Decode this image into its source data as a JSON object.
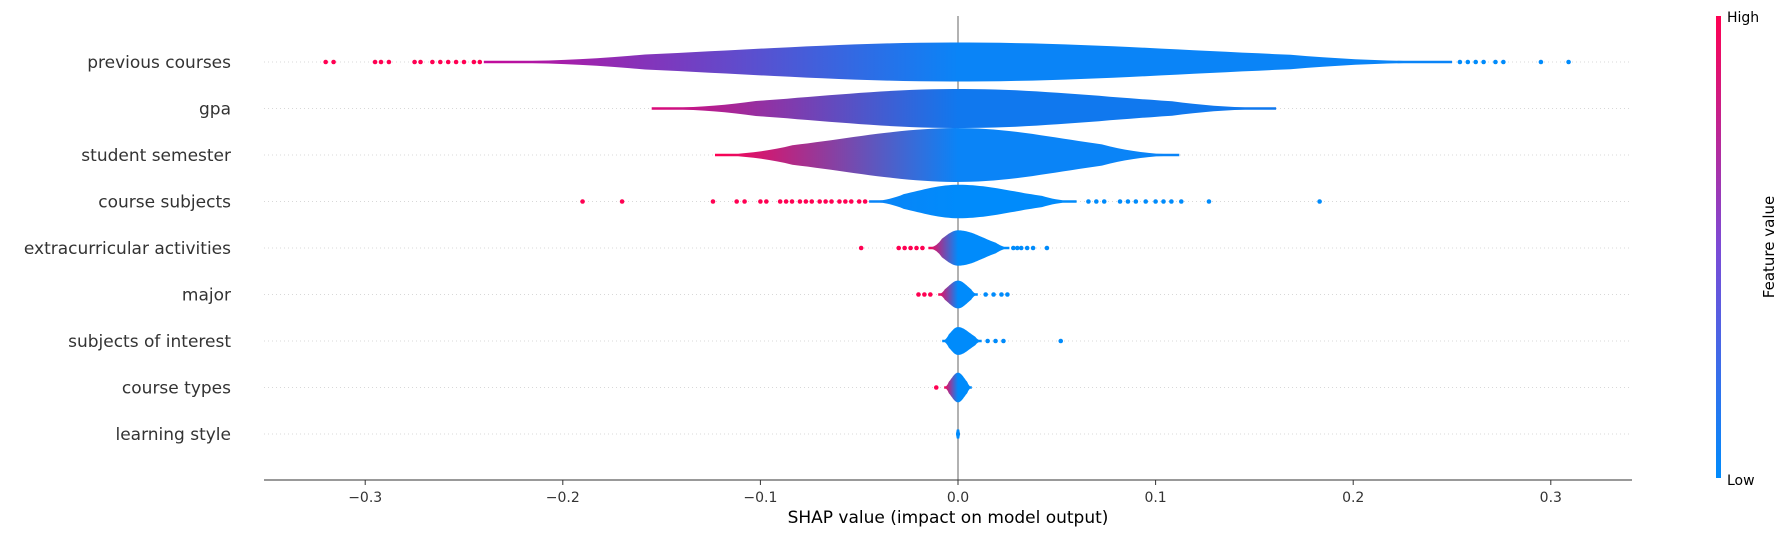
{
  "chart_data": {
    "type": "violin",
    "xlabel": "SHAP value (impact on model output)",
    "xlim": [
      -0.35,
      0.34
    ],
    "x_ticks": [
      -0.3,
      -0.2,
      -0.1,
      0.0,
      0.1,
      0.2,
      0.3
    ],
    "x_tick_labels": [
      "−0.3",
      "−0.2",
      "−0.1",
      "0.0",
      "0.1",
      "0.2",
      "0.3"
    ],
    "colorbar": {
      "label": "Feature value",
      "high_label": "High",
      "low_label": "Low",
      "high_color": "#ff0052",
      "low_color": "#008bfb"
    },
    "features": [
      {
        "name": "previous courses",
        "min": -0.24,
        "max": 0.25,
        "peak_half_width": 0.42,
        "neg_color": "#c40a9a",
        "pos_color": "#0a84f7",
        "outliers_high": [
          -0.32,
          -0.316,
          -0.295,
          -0.292,
          -0.288,
          -0.275,
          -0.272,
          -0.266,
          -0.262,
          -0.258,
          -0.254,
          -0.25,
          -0.245,
          -0.242
        ],
        "outliers_low": [
          0.254,
          0.258,
          0.262,
          0.266,
          0.272,
          0.276,
          0.295,
          0.309
        ]
      },
      {
        "name": "gpa",
        "min": -0.155,
        "max": 0.161,
        "peak_half_width": 0.42,
        "neg_color": "#dd0878",
        "pos_color": "#1078ee",
        "outliers_high": [],
        "outliers_low": []
      },
      {
        "name": "student semester",
        "min": -0.123,
        "max": 0.112,
        "peak_half_width": 0.58,
        "neg_color": "#ff0052",
        "pos_color": "#0a84f7",
        "outliers_high": [],
        "outliers_low": []
      },
      {
        "name": "course subjects",
        "min": -0.045,
        "max": 0.06,
        "peak_half_width": 0.36,
        "neg_color": "#0a84f7",
        "pos_color": "#008bfb",
        "outliers_high": [
          -0.19,
          -0.17,
          -0.124,
          -0.112,
          -0.108,
          -0.1,
          -0.097,
          -0.09,
          -0.087,
          -0.084,
          -0.08,
          -0.077,
          -0.074,
          -0.07,
          -0.067,
          -0.064,
          -0.06,
          -0.057,
          -0.054,
          -0.05,
          -0.047
        ],
        "outliers_low": [
          0.066,
          0.07,
          0.074,
          0.082,
          0.086,
          0.09,
          0.095,
          0.1,
          0.104,
          0.108,
          0.113,
          0.127,
          0.183
        ]
      },
      {
        "name": "extracurricular activities",
        "min": -0.015,
        "max": 0.026,
        "peak_half_width": 0.38,
        "neg_color": "#ff0052",
        "pos_color": "#008bfb",
        "outliers_high": [
          -0.049,
          -0.03,
          -0.027,
          -0.024,
          -0.021,
          -0.018
        ],
        "outliers_low": [
          0.028,
          0.03,
          0.032,
          0.035,
          0.038,
          0.045
        ]
      },
      {
        "name": "major",
        "min": -0.01,
        "max": 0.01,
        "peak_half_width": 0.3,
        "neg_color": "#ff0052",
        "pos_color": "#008bfb",
        "outliers_high": [
          -0.02,
          -0.017,
          -0.014
        ],
        "outliers_low": [
          0.014,
          0.018,
          0.022,
          0.025
        ]
      },
      {
        "name": "subjects of interest",
        "min": -0.008,
        "max": 0.012,
        "peak_half_width": 0.3,
        "neg_color": "#008bfb",
        "pos_color": "#008bfb",
        "outliers_high": [],
        "outliers_low": [
          0.015,
          0.019,
          0.023,
          0.052
        ]
      },
      {
        "name": "course types",
        "min": -0.007,
        "max": 0.007,
        "peak_half_width": 0.32,
        "neg_color": "#ff0052",
        "pos_color": "#008bfb",
        "outliers_high": [
          -0.011
        ],
        "outliers_low": []
      },
      {
        "name": "learning style",
        "min": -0.001,
        "max": 0.001,
        "peak_half_width": 0.1,
        "neg_color": "#008bfb",
        "pos_color": "#008bfb",
        "outliers_high": [],
        "outliers_low": []
      }
    ]
  }
}
